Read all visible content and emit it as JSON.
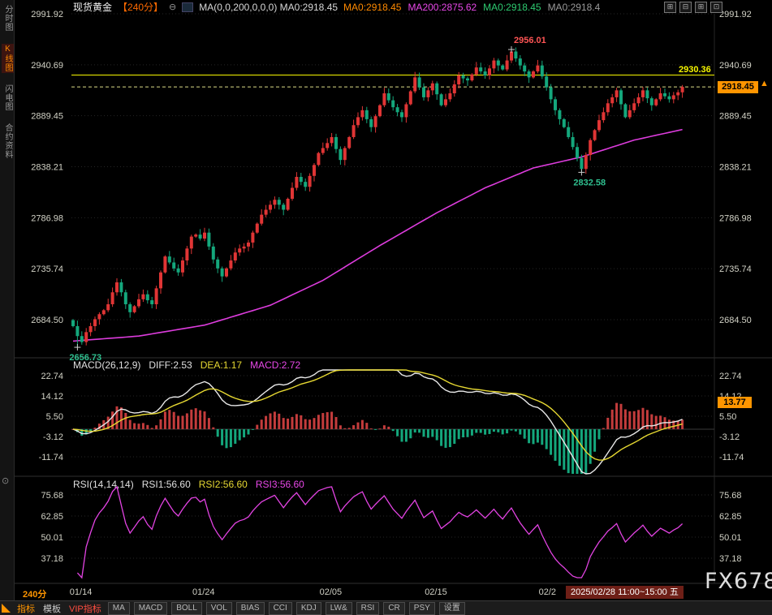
{
  "meta": {
    "watermark": "FX678"
  },
  "sidebar": {
    "items": [
      {
        "label": "分时图",
        "active": false
      },
      {
        "label": "K线图",
        "active": true
      },
      {
        "label": "闪电图",
        "active": false
      },
      {
        "label": "合约资料",
        "active": false
      }
    ],
    "record_icon": "⊙"
  },
  "header": {
    "symbol": "现货黄金",
    "period": "【240分】",
    "collapse_icon": "⊖",
    "ma_plain": "MA(0,0,200,0,0,0) MA0:2918.45",
    "ma_items": [
      {
        "text": "MA0:2918.45",
        "color": "#ff8a00"
      },
      {
        "text": "MA200:2875.62",
        "color": "#e948e9"
      },
      {
        "text": "MA0:2918.45",
        "color": "#2ecc71"
      },
      {
        "text": "MA0:2918.4",
        "color": "#9a9a9a"
      }
    ],
    "window_icons": [
      "⊞",
      "⊟",
      "⊞",
      "⊡"
    ]
  },
  "price_box": {
    "value": "2918.45",
    "arrow": "▲"
  },
  "level_label": {
    "text": "2930.36"
  },
  "macd_box": {
    "value": "13.77"
  },
  "macd_header": {
    "name": "MACD(26,12,9)",
    "diff": "DIFF:2.53",
    "dea": "DEA:1.17",
    "macd": "MACD:2.72"
  },
  "rsi_header": {
    "name": "RSI(14,14,14)",
    "rsi1": "RSI1:56.60",
    "rsi2": "RSI2:56.60",
    "rsi3": "RSI3:56.60"
  },
  "time_axis": {
    "period": "240分",
    "session": "2025/02/28 11:00~15:00 五"
  },
  "toolbar": {
    "tabs": [
      {
        "label": "指标",
        "color": "#ff9500"
      },
      {
        "label": "模板",
        "color": "#cccccc"
      },
      {
        "label": "VIP指标",
        "color": "#ff4d40"
      }
    ],
    "buttons": [
      "MA",
      "MACD",
      "BOLL",
      "VOL",
      "BIAS",
      "CCI",
      "KDJ",
      "LW&",
      "RSI",
      "CR",
      "PSY",
      "设置"
    ]
  },
  "chart_data": [
    {
      "type": "candlestick",
      "title": "现货黄金 240分",
      "y_ticks": [
        2991.92,
        2940.69,
        2889.45,
        2838.21,
        2786.98,
        2735.74,
        2684.5
      ],
      "y_range": [
        2649.4,
        2991.92
      ],
      "x_ticks": [
        {
          "label": "01/14",
          "index": 2
        },
        {
          "label": "01/24",
          "index": 30
        },
        {
          "label": "02/05",
          "index": 59
        },
        {
          "label": "02/15",
          "index": 83
        },
        {
          "label": "02/2",
          "index": 109
        }
      ],
      "first_open": 2684,
      "closes": [
        2678,
        2668,
        2662,
        2672,
        2678,
        2685,
        2690,
        2694,
        2700,
        2712,
        2722,
        2712,
        2700,
        2692,
        2698,
        2705,
        2710,
        2704,
        2700,
        2716,
        2732,
        2748,
        2742,
        2736,
        2732,
        2744,
        2756,
        2768,
        2770,
        2766,
        2772,
        2758,
        2745,
        2736,
        2728,
        2736,
        2744,
        2752,
        2756,
        2758,
        2762,
        2772,
        2781,
        2790,
        2795,
        2800,
        2805,
        2800,
        2795,
        2806,
        2817,
        2828,
        2823,
        2818,
        2829,
        2840,
        2852,
        2857,
        2862,
        2868,
        2856,
        2845,
        2857,
        2868,
        2880,
        2888,
        2895,
        2886,
        2878,
        2889,
        2900,
        2912,
        2905,
        2898,
        2893,
        2888,
        2901,
        2914,
        2928,
        2918,
        2908,
        2915,
        2922,
        2911,
        2900,
        2906,
        2912,
        2921,
        2930,
        2927,
        2925,
        2931,
        2938,
        2934,
        2930,
        2937,
        2945,
        2940,
        2936,
        2945,
        2954,
        2947,
        2940,
        2934,
        2928,
        2934,
        2940,
        2929,
        2918,
        2906,
        2895,
        2886,
        2878,
        2868,
        2858,
        2847,
        2836,
        2850,
        2865,
        2875,
        2885,
        2893,
        2902,
        2908,
        2915,
        2901,
        2888,
        2895,
        2902,
        2908,
        2915,
        2907,
        2900,
        2906,
        2912,
        2909,
        2906,
        2910,
        2913,
        2918.45
      ],
      "ma200": {
        "color": "#dd3cdd",
        "anchors": [
          [
            0,
            2663
          ],
          [
            15,
            2668
          ],
          [
            30,
            2679
          ],
          [
            45,
            2699
          ],
          [
            57,
            2724
          ],
          [
            70,
            2759
          ],
          [
            83,
            2792
          ],
          [
            94,
            2817
          ],
          [
            105,
            2837
          ],
          [
            116,
            2848
          ],
          [
            128,
            2865
          ],
          [
            139,
            2875.62
          ]
        ]
      },
      "levels": [
        {
          "price": 2930.36,
          "color": "#f7f700",
          "style": "solid",
          "label": "2930.36"
        },
        {
          "price": 2918.45,
          "color": "#dddd88",
          "style": "dashed",
          "label": "2918.45"
        }
      ],
      "annotations": [
        {
          "index": 1,
          "price": 2656.73,
          "label": "2656.73",
          "color": "#2fbf8f",
          "pos": "below"
        },
        {
          "index": 100,
          "price": 2956.01,
          "label": "2956.01",
          "color": "#ff5555",
          "pos": "above"
        },
        {
          "index": 116,
          "price": 2832.58,
          "label": "2832.58",
          "color": "#2fbf8f",
          "pos": "below"
        }
      ],
      "up_color": "#e03535",
      "down_color": "#14a77c"
    },
    {
      "type": "macd-histogram",
      "params": "MACD(26,12,9)",
      "diff": 2.53,
      "dea": 1.17,
      "macd": 2.72,
      "y_ticks": [
        22.74,
        14.12,
        5.5,
        -3.12,
        -11.74
      ],
      "last_value": 13.77,
      "pos_color": "#c43c3c",
      "neg_color": "#14a77c",
      "diff_color": "#e8e8e8",
      "dea_color": "#e6d832"
    },
    {
      "type": "line",
      "params": "RSI(14,14,14)",
      "rsi1": 56.6,
      "rsi2": 56.6,
      "rsi3": 56.6,
      "y_ticks": [
        75.68,
        62.85,
        50.01,
        37.18
      ],
      "color": "#e243e2"
    }
  ]
}
